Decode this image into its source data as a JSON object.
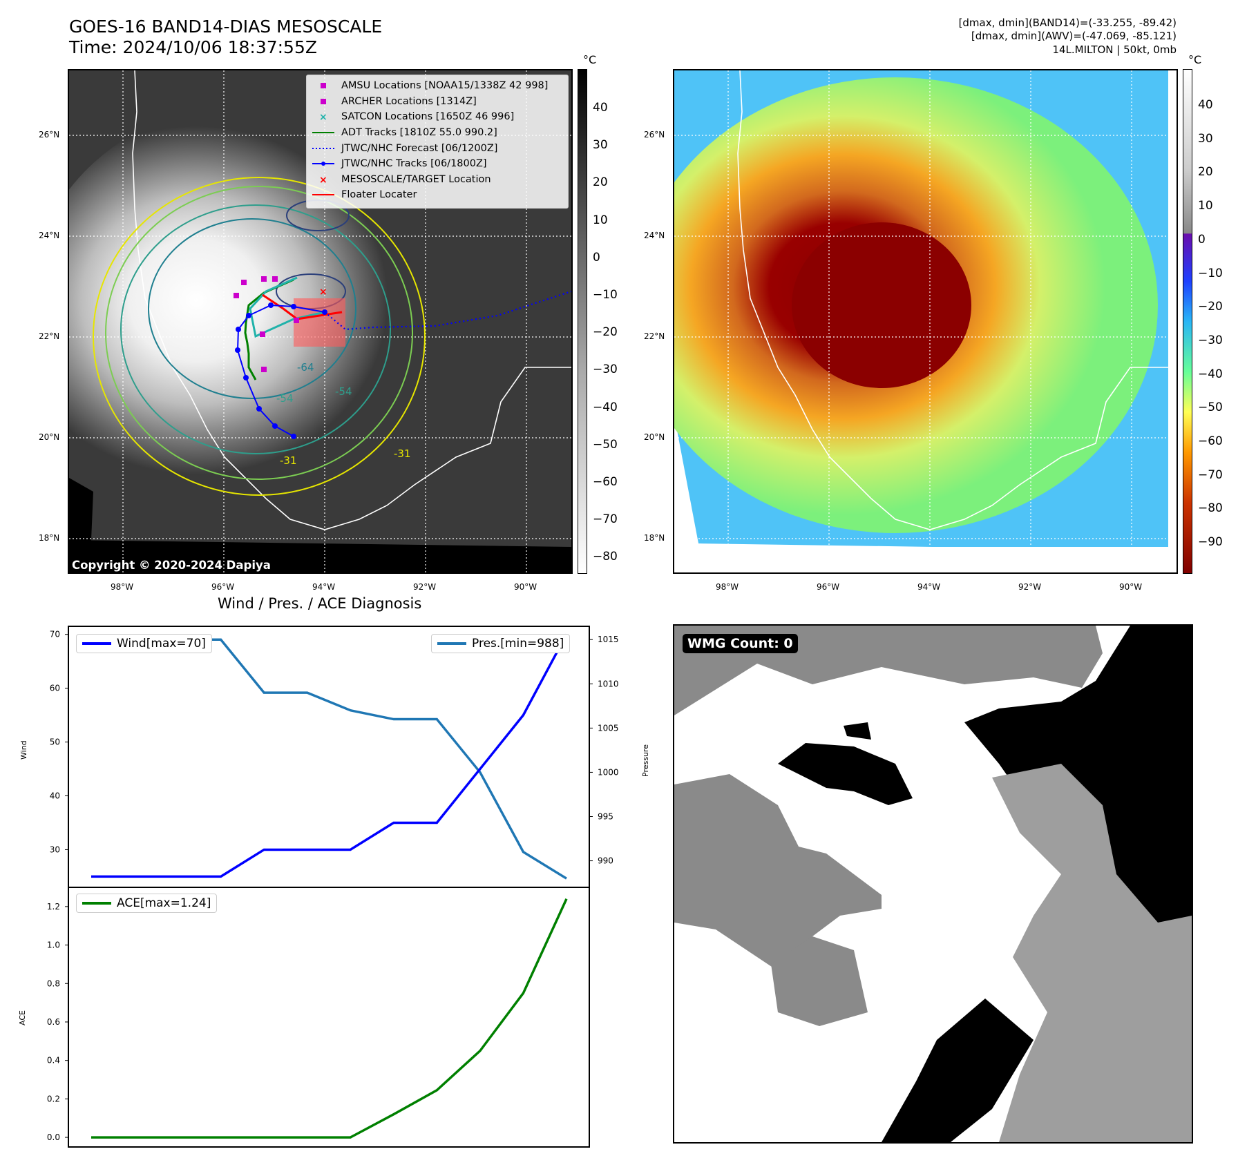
{
  "header": {
    "title_line1": "GOES-16 BAND14-DIAS MESOSCALE",
    "title_line2": "Time: 2024/10/06 18:37:55Z",
    "info_line1": "[dmax, dmin](BAND14)=(-33.255, -89.42)",
    "info_line2": "[dmax, dmin](AWV)=(-47.069, -85.121)",
    "info_line3": "14L.MILTON | 50kt, 0mb"
  },
  "maps": {
    "lat_labels": [
      "26°N",
      "24°N",
      "22°N",
      "20°N",
      "18°N"
    ],
    "lon_labels": [
      "98°W",
      "96°W",
      "94°W",
      "92°W",
      "90°W"
    ],
    "copyright": "Copyright © 2020-2024 Dapiya",
    "contour_labels": [
      "-64",
      "-54",
      "-31",
      "-31",
      "-54"
    ],
    "colorbar1": {
      "unit": "°C",
      "ticks": [
        "40",
        "30",
        "20",
        "10",
        "0",
        "−10",
        "−20",
        "−30",
        "−40",
        "−50",
        "−60",
        "−70",
        "−80"
      ]
    },
    "colorbar2": {
      "unit": "°C",
      "ticks": [
        "40",
        "30",
        "20",
        "10",
        "0",
        "−10",
        "−20",
        "−30",
        "−40",
        "−50",
        "−60",
        "−70",
        "−80",
        "−90"
      ]
    },
    "legend": [
      {
        "label": "AMSU Locations [NOAA15/1338Z 42 998]",
        "symbol": "square",
        "color": "#cc00cc"
      },
      {
        "label": "ARCHER Locations [1314Z]",
        "symbol": "square",
        "color": "#cc00cc"
      },
      {
        "label": "SATCON Locations [1650Z 46 996]",
        "symbol": "x",
        "color": "#20b2aa"
      },
      {
        "label": "ADT Tracks [1810Z 55.0 990.2]",
        "symbol": "line",
        "color": "#008000"
      },
      {
        "label": "JTWC/NHC Forecast [06/1200Z]",
        "symbol": "dotted",
        "color": "#0000ff"
      },
      {
        "label": "JTWC/NHC Tracks [06/1800Z]",
        "symbol": "dotline",
        "color": "#0000ff"
      },
      {
        "label": "MESOSCALE/TARGET Location",
        "symbol": "x",
        "color": "#ff0000"
      },
      {
        "label": "Floater Locater",
        "symbol": "line",
        "color": "#ff0000"
      }
    ]
  },
  "diagnosis": {
    "title": "Wind / Pres. / ACE Diagnosis",
    "wind_legend": "Wind[max=70]",
    "pres_legend": "Pres.[min=988]",
    "ace_legend": "ACE[max=1.24]",
    "wind_axis_label": "Wind",
    "pres_axis_label": "Pressure",
    "ace_axis_label": "ACE",
    "colors": {
      "wind": "#0000ff",
      "pres": "#1f77b4",
      "ace": "#008000"
    }
  },
  "wmg": {
    "label": "WMG Count: 0"
  },
  "chart_data": [
    {
      "type": "line",
      "title": "Wind / Pres. / ACE Diagnosis",
      "x": [
        0,
        1,
        2,
        3,
        4,
        5,
        6,
        7,
        8,
        9,
        10,
        11
      ],
      "series": [
        {
          "name": "Wind",
          "axis": "left",
          "values": [
            25,
            25,
            25,
            25,
            30,
            30,
            30,
            35,
            35,
            45,
            55,
            70
          ]
        },
        {
          "name": "Pres.",
          "axis": "right",
          "values": [
            1015,
            1015,
            1015,
            1015,
            1009,
            1009,
            1007,
            1006,
            1006,
            1000,
            991,
            988
          ]
        }
      ],
      "ylabel": "Wind",
      "y2label": "Pressure",
      "ylim": [
        23,
        71.5
      ],
      "y2lim": [
        987,
        1016.5
      ],
      "yticks": [
        30,
        40,
        50,
        60,
        70
      ],
      "y2ticks": [
        990,
        995,
        1000,
        1005,
        1010,
        1015
      ]
    },
    {
      "type": "line",
      "x": [
        0,
        1,
        2,
        3,
        4,
        5,
        6,
        7,
        8,
        9,
        10,
        11
      ],
      "series": [
        {
          "name": "ACE",
          "values": [
            0,
            0,
            0,
            0,
            0,
            0,
            0,
            0.12,
            0.245,
            0.45,
            0.75,
            1.24
          ]
        }
      ],
      "ylabel": "ACE",
      "ylim": [
        -0.05,
        1.3
      ],
      "yticks": [
        0.0,
        0.2,
        0.4,
        0.6,
        0.8,
        1.0,
        1.2
      ],
      "ytick_labels": [
        "0.0",
        "0.2",
        "0.4",
        "0.6",
        "0.8",
        "1.0",
        "1.2"
      ]
    }
  ]
}
